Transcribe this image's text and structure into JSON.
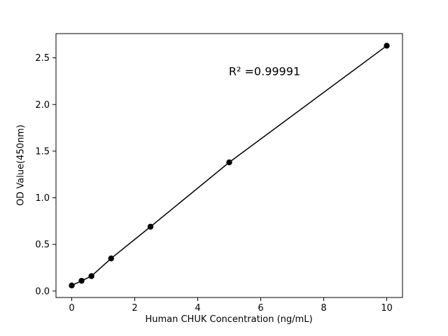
{
  "chart_data": {
    "type": "scatter",
    "title": "",
    "xlabel": "Human CHUK Concentration (ng/mL)",
    "ylabel": "OD Value(450nm)",
    "annotation": "R² =0.99991",
    "x": [
      0,
      0.3125,
      0.625,
      1.25,
      2.5,
      5,
      10
    ],
    "y": [
      0.06,
      0.11,
      0.16,
      0.35,
      0.69,
      1.38,
      2.63
    ],
    "line": true,
    "xticks": [
      0,
      2,
      4,
      6,
      8,
      10
    ],
    "yticks": [
      0.0,
      0.5,
      1.0,
      1.5,
      2.0,
      2.5
    ],
    "xlim": [
      -0.5,
      10.5
    ],
    "ylim": [
      -0.069,
      2.76
    ],
    "legend": "none",
    "grid": false,
    "marker_color": "#000000",
    "line_color": "#000000",
    "axis_color": "#000000",
    "annotation_position": {
      "x": 6.1,
      "y": 2.35
    }
  }
}
